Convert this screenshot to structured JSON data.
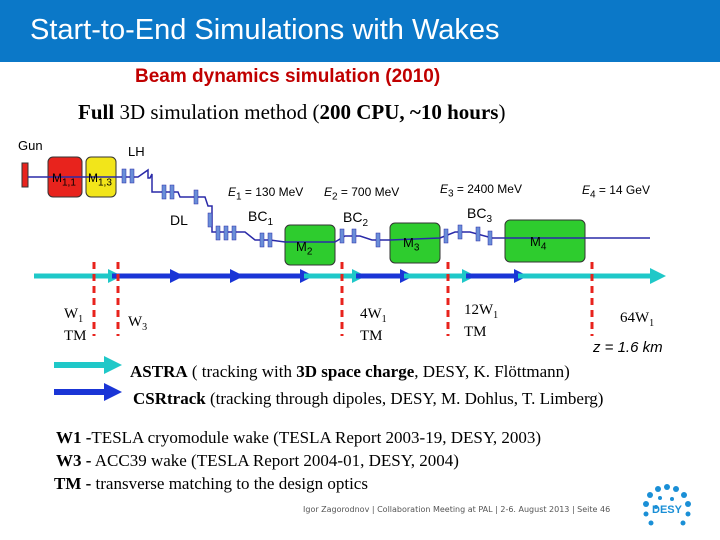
{
  "header": {
    "title": "Start-to-End Simulations with Wakes",
    "bg": "#0b78c8"
  },
  "subtitle": "Beam dynamics simulation (2010)",
  "method": {
    "bold1": "Full",
    "text1": " 3D simulation method (",
    "bold2": "200 CPU, ~10 hours",
    "text2": ")"
  },
  "diagram": {
    "gun": "Gun",
    "lh": "LH",
    "dl": "DL",
    "modules_red": [
      "M",
      "M"
    ],
    "modules_red_sub": [
      "1,1",
      "1,3"
    ],
    "modules_green": [
      "M",
      "M",
      "M"
    ],
    "modules_green_sub": [
      "2",
      "3",
      "4"
    ],
    "bunch_compressors": [
      "BC",
      "BC",
      "BC"
    ],
    "bunch_compressors_sub": [
      "1",
      "2",
      "3"
    ],
    "energies": [
      {
        "pre": "E",
        "sub": "1",
        "post": " = 130 MeV"
      },
      {
        "pre": "E",
        "sub": "2",
        "post": " = 700 MeV"
      },
      {
        "pre": "E",
        "sub": "3",
        "post": " = 2400 MeV"
      },
      {
        "pre": "E",
        "sub": "4",
        "post": " = 14 GeV"
      }
    ],
    "distance": "z = 1.6 km",
    "wake_labels": [
      {
        "line1": "W",
        "sub": "1",
        "line2": "TM"
      },
      {
        "line1": "W",
        "sub": "3",
        "line2": ""
      },
      {
        "line1": "4W",
        "sub": "1",
        "line2": "TM"
      },
      {
        "line1": "12W",
        "sub": "1",
        "line2": "TM"
      },
      {
        "line1": "64W",
        "sub": "1",
        "line2": ""
      }
    ]
  },
  "legend": {
    "astra": {
      "bold": "ASTRA",
      "text1": " ( tracking with ",
      "bold2": "3D space charge",
      "text2": ", DESY, K. Flöttmann)"
    },
    "csrtrack": {
      "bold": "CSRtrack",
      "text1": " (tracking through dipoles, DESY, M. Dohlus, T. Limberg)"
    }
  },
  "notes": [
    {
      "bold": "W1 -",
      "text": "TESLA cryomodule wake (TESLA Report 2003-19, DESY, 2003)"
    },
    {
      "bold": "W3 -",
      "text": " ACC39 wake (TESLA Report 2004-01, DESY, 2004)"
    },
    {
      "bold": "TM -",
      "text": " transverse matching to the design optics"
    }
  ],
  "footer": "Igor Zagorodnov | Collaboration Meeting at PAL | 2-6. August 2013 | Seite 46",
  "logo_text": "DESY",
  "colors": {
    "title_red": "#c00000",
    "module_red": "#e8231d",
    "module_yellow": "#f2e51a",
    "module_green": "#2ecc2e",
    "astra_arrow": "#1fc8c8",
    "csr_arrow": "#1a35d6",
    "beamline": "#2a2aa8",
    "marker_red": "#e8231d"
  }
}
